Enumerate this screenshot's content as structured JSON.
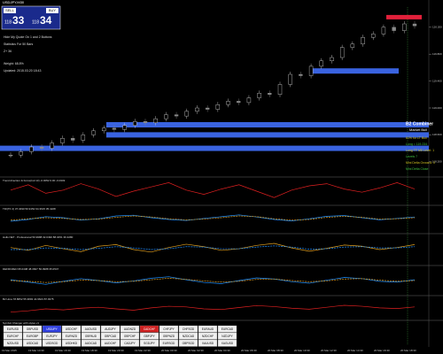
{
  "header": {
    "symbol": "USDJPY,M30",
    "sell": "SELL",
    "buy": "BUY",
    "prefix": "118",
    "bid": "33",
    "ask": "34"
  },
  "info": [
    "Hide My Quote On 1 and 2 Buttons",
    "Statistics For 50 Bars",
    "Z+ 36",
    "Weight: 68.8%",
    "Updated: 2015.03.20 18:43"
  ],
  "combiner": {
    "title": "B2 Combiner",
    "state": "Market Bull",
    "lines": [
      "61% for LT Bull",
      "Long = 119.234",
      "Long TF M5 Level: 1",
      "Levels 7",
      "Mini Delta Onward: 3",
      "Mini Delta Close"
    ]
  },
  "price_chart": {
    "up_color": "#d8d8d8",
    "down_color": "#8a8a8a",
    "zone_color": "#3a63e0",
    "top_zone_color": "#e0203a",
    "closes": [
      118.3,
      118.35,
      118.42,
      118.4,
      118.48,
      118.55,
      118.52,
      118.6,
      118.66,
      118.7,
      118.68,
      118.74,
      118.8,
      118.78,
      118.84,
      118.9,
      118.88,
      118.95,
      119.0,
      118.98,
      119.05,
      119.1,
      119.08,
      119.15,
      119.22,
      119.2,
      119.35,
      119.5,
      119.48,
      119.62,
      119.7,
      119.75,
      119.9,
      119.95,
      120.05,
      120.1,
      120.2,
      120.15,
      120.25,
      120.22
    ],
    "zones": [
      119.55,
      118.75,
      118.6,
      118.4
    ],
    "top_zone": 120.35,
    "ylim": [
      118.0,
      120.5
    ],
    "yticks": [
      {
        "value": 118.2,
        "label": "118.200"
      },
      {
        "value": 118.6,
        "label": "118.600"
      },
      {
        "value": 119.0,
        "label": "119.000"
      },
      {
        "value": 119.4,
        "label": "119.400"
      },
      {
        "value": 119.8,
        "label": "119.800"
      },
      {
        "value": 120.2,
        "label": "120.200"
      }
    ]
  },
  "panels": [
    {
      "title": "Trend direction & Force(Ind 13) -0.0052 0.00 -0.0349",
      "ylim": [
        -1,
        1
      ],
      "series": [
        {
          "color": "#e02020",
          "values": [
            0.1,
            0.6,
            -0.2,
            0.1,
            0.7,
            0.2,
            -0.5,
            0.0,
            0.4,
            0.8,
            0.1,
            -0.3,
            0.2,
            0.6,
            0.0,
            -0.6,
            0.1,
            0.5,
            0.7,
            0.2,
            -0.1,
            0.3,
            0.8,
            0.2
          ]
        }
      ]
    },
    {
      "title": "TDI(TF 2) 37.3490 50.9152 64.3615 35.4228",
      "ylim": [
        20,
        80
      ],
      "series": [
        {
          "color": "#1e90ff",
          "values": [
            45,
            50,
            58,
            55,
            48,
            52,
            60,
            62,
            55,
            50,
            47,
            53,
            58,
            63,
            57,
            50,
            46,
            52,
            59,
            61,
            55,
            49,
            53,
            57
          ]
        },
        {
          "color": "#e0a020",
          "values": [
            48,
            52,
            55,
            53,
            50,
            51,
            56,
            60,
            57,
            52,
            49,
            51,
            55,
            60,
            58,
            52,
            48,
            50,
            56,
            59,
            56,
            51,
            52,
            55
          ]
        }
      ]
    },
    {
      "title": "Hulls NET - Professional 50.9988 32.0490 88.0451 36.3280",
      "ylim": [
        20,
        80
      ],
      "series": [
        {
          "color": "#e0a020",
          "values": [
            55,
            48,
            60,
            52,
            45,
            58,
            62,
            50,
            44,
            55,
            63,
            57,
            48,
            52,
            60,
            65,
            54,
            46,
            53,
            61,
            58,
            50,
            55,
            62
          ]
        },
        {
          "color": "#1e90ff",
          "values": [
            50,
            50,
            54,
            53,
            50,
            53,
            57,
            54,
            50,
            52,
            57,
            56,
            52,
            52,
            56,
            59,
            56,
            51,
            52,
            56,
            57,
            54,
            54,
            57
          ]
        }
      ]
    },
    {
      "title": "DEFROZEN 95.0408 48.3607 56.0988 35.0547",
      "ylim": [
        20,
        80
      ],
      "series": [
        {
          "color": "#1e90ff",
          "values": [
            52,
            46,
            40,
            48,
            55,
            50,
            44,
            49,
            56,
            60,
            52,
            45,
            42,
            50,
            57,
            54,
            47,
            43,
            51,
            58,
            55,
            48,
            46,
            52
          ]
        },
        {
          "color": "#e0a020",
          "values": [
            50,
            48,
            45,
            47,
            51,
            50,
            47,
            48,
            52,
            56,
            53,
            49,
            46,
            48,
            53,
            54,
            50,
            47,
            49,
            54,
            55,
            51,
            48,
            50
          ]
        }
      ]
    },
    {
      "title": "B2 Hma 78.8652 55.3893 44.9623 87.9375",
      "ylim": [
        20,
        80
      ],
      "series": [
        {
          "color": "#e02020",
          "values": [
            40,
            44,
            50,
            47,
            52,
            55,
            50,
            46,
            53,
            58,
            56,
            50,
            48,
            54,
            60,
            57,
            52,
            49,
            55,
            61,
            58,
            53,
            51,
            56
          ]
        }
      ]
    }
  ],
  "symbol_changer": {
    "title": "Symbol Changer with styles v1",
    "active": "USDJPY",
    "alert": "CADCHF",
    "symbols": [
      "EURUSD",
      "GBPUSD",
      "USDJPY",
      "USDCHF",
      "AUDUSD",
      "AUDJPY",
      "AUDNZD",
      "CADCHF",
      "CHFJPY",
      "CHFSGD",
      "EURAUD",
      "EURCAD",
      "EURCHF",
      "EURGBP",
      "EURJPY",
      "EURNZD",
      "GBPAUD",
      "GBPCAD",
      "GBPCHF",
      "GBPJPY",
      "GBPNZD",
      "NZDCAD",
      "NZDCHF",
      "NZDJPY",
      "NZDUSD",
      "USDCAD",
      "USDSGD",
      "USDHKD",
      "AUDCAD",
      "AUDCHF",
      "CADJPY",
      "SGDJPY",
      "EURSGD",
      "GBPSGD",
      "XAUUSD",
      "XAGUSD"
    ]
  },
  "time_axis": [
    "19 Mar 2015",
    "19 Mar 14:30",
    "19 Mar 16:30",
    "19 Mar 18:30",
    "19 Mar 20:30",
    "19 Mar 22:30",
    "20 Mar 00:30",
    "20 Mar 02:30",
    "20 Mar 04:30",
    "20 Mar 06:30",
    "20 Mar 08:30",
    "20 Mar 10:30",
    "20 Mar 12:30",
    "20 Mar 14:30",
    "20 Mar 16:30",
    "20 Mar 18:30"
  ]
}
